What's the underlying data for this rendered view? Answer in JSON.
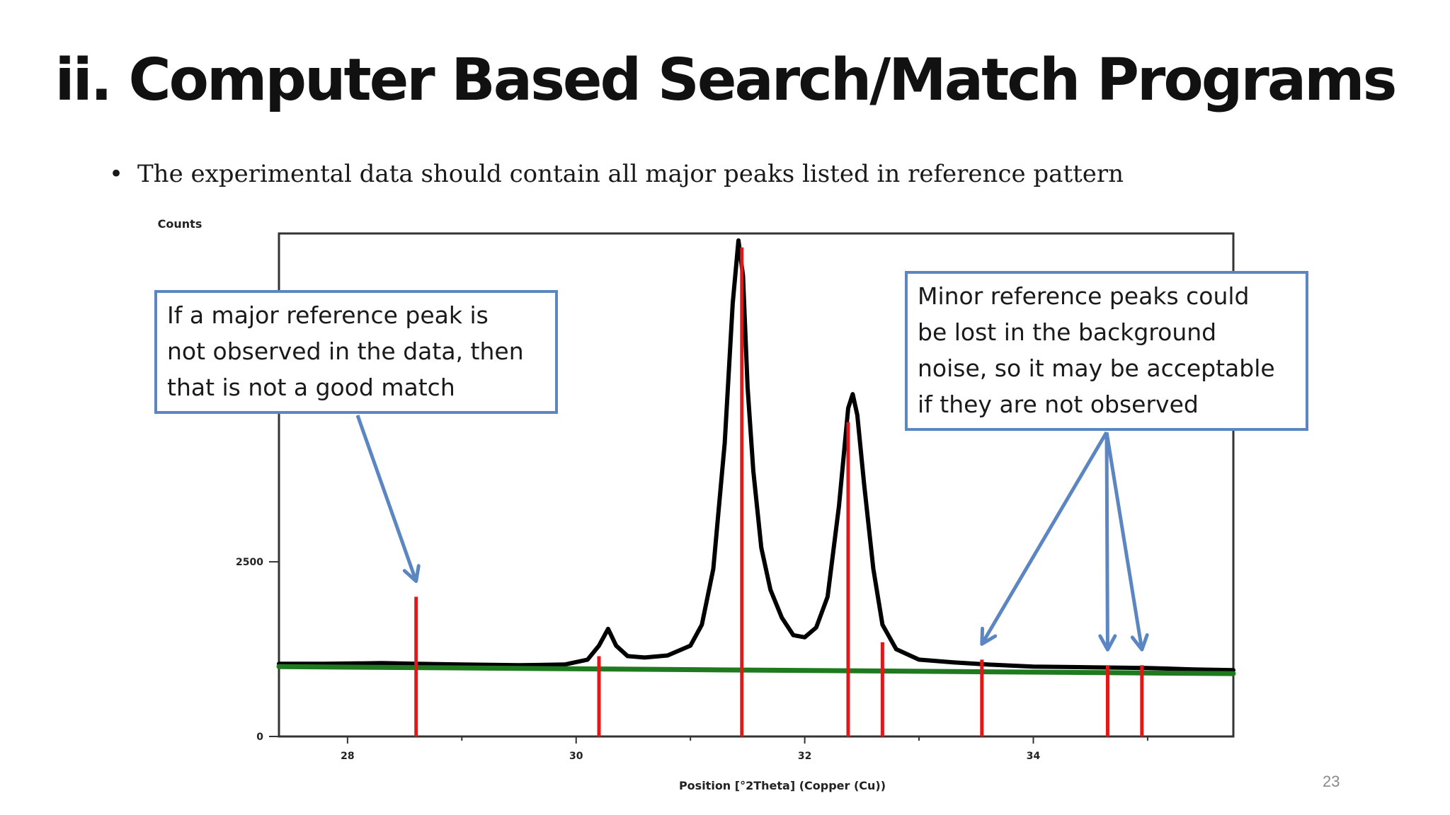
{
  "slide": {
    "title": "ii. Computer Based Search/Match Programs",
    "bullet": "The experimental data should contain all major peaks listed in reference pattern",
    "page_number": "23"
  },
  "callouts": {
    "left": [
      "If a major reference peak is",
      "not observed in the data, then",
      "that is not a good match"
    ],
    "right": [
      "Minor reference peaks could",
      "be lost in the background",
      "noise, so it may be acceptable",
      "if they are not observed"
    ]
  },
  "colors": {
    "experimental": "#000000",
    "background": "#1f7a1f",
    "reference": "#e01818",
    "callout": "#5b86c1"
  },
  "chart_data": {
    "type": "line",
    "xlabel": "Position [°2Theta] (Copper (Cu))",
    "ylabel": "Counts",
    "xlim": [
      27.4,
      35.75
    ],
    "ylim": [
      0,
      7200
    ],
    "x_ticks": [
      28,
      30,
      32,
      34
    ],
    "y_ticks": [
      0,
      2500
    ],
    "series": [
      {
        "role": "experimental",
        "x": [
          27.4,
          27.8,
          28.3,
          28.6,
          29.0,
          29.5,
          29.9,
          30.1,
          30.2,
          30.28,
          30.35,
          30.45,
          30.6,
          30.8,
          31.0,
          31.1,
          31.2,
          31.3,
          31.37,
          31.42,
          31.46,
          31.5,
          31.55,
          31.62,
          31.7,
          31.8,
          31.9,
          32.0,
          32.1,
          32.2,
          32.3,
          32.38,
          32.42,
          32.46,
          32.52,
          32.6,
          32.68,
          32.8,
          33.0,
          33.3,
          33.6,
          34.0,
          34.5,
          35.0,
          35.4,
          35.75
        ],
        "y": [
          1040,
          1040,
          1050,
          1040,
          1030,
          1020,
          1030,
          1100,
          1300,
          1540,
          1300,
          1150,
          1130,
          1160,
          1300,
          1600,
          2400,
          4200,
          6200,
          7100,
          6600,
          5000,
          3800,
          2700,
          2100,
          1700,
          1450,
          1420,
          1560,
          2000,
          3300,
          4700,
          4900,
          4600,
          3600,
          2400,
          1600,
          1250,
          1100,
          1060,
          1030,
          1000,
          990,
          980,
          960,
          950
        ]
      },
      {
        "role": "background",
        "x": [
          27.4,
          35.75
        ],
        "y": [
          1000,
          900
        ]
      }
    ],
    "reference_peaks": [
      {
        "x": 28.6,
        "y": 2000
      },
      {
        "x": 30.2,
        "y": 1150
      },
      {
        "x": 31.45,
        "y": 7000
      },
      {
        "x": 32.38,
        "y": 4500
      },
      {
        "x": 32.68,
        "y": 1350
      },
      {
        "x": 33.55,
        "y": 1100
      },
      {
        "x": 34.65,
        "y": 1020
      },
      {
        "x": 34.95,
        "y": 1020
      }
    ]
  }
}
